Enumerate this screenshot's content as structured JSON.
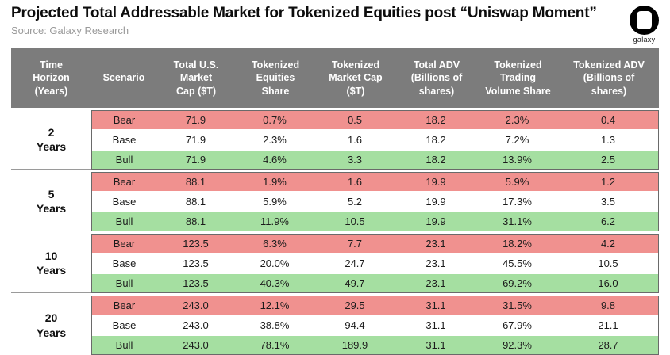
{
  "header": {
    "title": "Projected Total Addressable Market for Tokenized Equities post “Uniswap Moment”",
    "source": "Source: Galaxy Research",
    "logo_text": "galaxy"
  },
  "chart_data": {
    "type": "table",
    "title": "Projected Total Addressable Market for Tokenized Equities post “Uniswap Moment”",
    "source": "Source: Galaxy Research",
    "colors": {
      "bear_row": "#f0918f",
      "base_row": "#ffffff",
      "bull_row": "#a5dfa1",
      "header_bg": "#7c7c7c",
      "header_text": "#ffffff"
    },
    "columns": [
      "Time\nHorizon\n(Years)",
      "Scenario",
      "Total U.S. Market\nCap ($T)",
      "Tokenized\nEquities\nShare",
      "Tokenized\nMarket Cap\n($T)",
      "Total ADV\n(Billions of\nshares)",
      "Tokenized\nTrading\nVolume Share",
      "Tokenized ADV\n(Billions of\nshares)"
    ],
    "groups": [
      {
        "horizon_value": "2",
        "horizon_unit": "Years",
        "rows": [
          {
            "scenario": "Bear",
            "values": [
              "71.9",
              "0.7%",
              "0.5",
              "18.2",
              "2.3%",
              "0.4"
            ]
          },
          {
            "scenario": "Base",
            "values": [
              "71.9",
              "2.3%",
              "1.6",
              "18.2",
              "7.2%",
              "1.3"
            ]
          },
          {
            "scenario": "Bull",
            "values": [
              "71.9",
              "4.6%",
              "3.3",
              "18.2",
              "13.9%",
              "2.5"
            ]
          }
        ]
      },
      {
        "horizon_value": "5",
        "horizon_unit": "Years",
        "rows": [
          {
            "scenario": "Bear",
            "values": [
              "88.1",
              "1.9%",
              "1.6",
              "19.9",
              "5.9%",
              "1.2"
            ]
          },
          {
            "scenario": "Base",
            "values": [
              "88.1",
              "5.9%",
              "5.2",
              "19.9",
              "17.3%",
              "3.5"
            ]
          },
          {
            "scenario": "Bull",
            "values": [
              "88.1",
              "11.9%",
              "10.5",
              "19.9",
              "31.1%",
              "6.2"
            ]
          }
        ]
      },
      {
        "horizon_value": "10",
        "horizon_unit": "Years",
        "rows": [
          {
            "scenario": "Bear",
            "values": [
              "123.5",
              "6.3%",
              "7.7",
              "23.1",
              "18.2%",
              "4.2"
            ]
          },
          {
            "scenario": "Base",
            "values": [
              "123.5",
              "20.0%",
              "24.7",
              "23.1",
              "45.5%",
              "10.5"
            ]
          },
          {
            "scenario": "Bull",
            "values": [
              "123.5",
              "40.3%",
              "49.7",
              "23.1",
              "69.2%",
              "16.0"
            ]
          }
        ]
      },
      {
        "horizon_value": "20",
        "horizon_unit": "Years",
        "rows": [
          {
            "scenario": "Bear",
            "values": [
              "243.0",
              "12.1%",
              "29.5",
              "31.1",
              "31.5%",
              "9.8"
            ]
          },
          {
            "scenario": "Base",
            "values": [
              "243.0",
              "38.8%",
              "94.4",
              "31.1",
              "67.9%",
              "21.1"
            ]
          },
          {
            "scenario": "Bull",
            "values": [
              "243.0",
              "78.1%",
              "189.9",
              "31.1",
              "92.3%",
              "28.7"
            ]
          }
        ]
      }
    ]
  }
}
